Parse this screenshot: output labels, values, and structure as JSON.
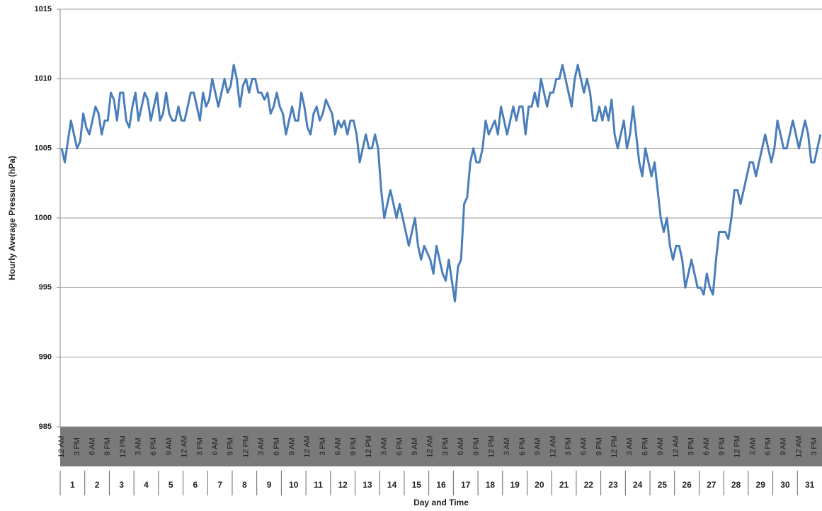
{
  "chart_data": {
    "type": "line",
    "y_label": "Hourly Average Pressure (hPa)",
    "x_label": "Day and Time",
    "color": "#4a7ebb",
    "grid": true,
    "ylim": [
      985,
      1015
    ],
    "yticks": [
      985,
      990,
      995,
      1000,
      1005,
      1010,
      1015
    ],
    "days": [
      "1",
      "2",
      "3",
      "4",
      "5",
      "6",
      "7",
      "8",
      "9",
      "10",
      "11",
      "12",
      "13",
      "14",
      "15",
      "16",
      "17",
      "18",
      "19",
      "20",
      "21",
      "22",
      "23",
      "24",
      "25",
      "26",
      "27",
      "28",
      "29",
      "30",
      "31"
    ],
    "categories": [
      "12 AM",
      null,
      null,
      null,
      null,
      "3 PM",
      null,
      null,
      null,
      null,
      "6 AM",
      null,
      null,
      null,
      null,
      "9 PM",
      null,
      null,
      null,
      null,
      "12 PM",
      null,
      null,
      null,
      null,
      "3 AM",
      null,
      null,
      null,
      null,
      "6 PM",
      null,
      null,
      null,
      null,
      "9 AM",
      null,
      null,
      null,
      null,
      "12 AM",
      null,
      null,
      null,
      null,
      "3 PM",
      null,
      null,
      null,
      null,
      "6 AM",
      null,
      null,
      null,
      null,
      "9 PM",
      null,
      null,
      null,
      null,
      "12 PM",
      null,
      null,
      null,
      null,
      "3 AM",
      null,
      null,
      null,
      null,
      "6 PM",
      null,
      null,
      null,
      null,
      "9 AM",
      null,
      null,
      null,
      null,
      "12 AM",
      null,
      null,
      null,
      null,
      "3 PM",
      null,
      null,
      null,
      null,
      "6 AM",
      null,
      null,
      null,
      null,
      "9 PM",
      null,
      null,
      null,
      null,
      "12 PM",
      null,
      null,
      null,
      null,
      "3 AM",
      null,
      null,
      null,
      null,
      "6 PM",
      null,
      null,
      null,
      null,
      "9 AM",
      null,
      null,
      null,
      null,
      "12 AM",
      null,
      null,
      null,
      null,
      "3 PM",
      null,
      null,
      null,
      null,
      "6 AM",
      null,
      null,
      null,
      null,
      "9 PM",
      null,
      null,
      null,
      null,
      "12 PM",
      null,
      null,
      null,
      null,
      "3 AM",
      null,
      null,
      null,
      null,
      "6 PM",
      null,
      null,
      null,
      null,
      "9 AM",
      null,
      null,
      null,
      null,
      "12 AM",
      null,
      null,
      null,
      null,
      "3 PM",
      null,
      null,
      null,
      null,
      "6 AM",
      null,
      null,
      null,
      null,
      "9 PM",
      null,
      null,
      null,
      null,
      "12 PM",
      null,
      null,
      null,
      null,
      "3 AM",
      null,
      null,
      null,
      null,
      "6 PM",
      null,
      null,
      null,
      null,
      "9 AM",
      null,
      null,
      null,
      null,
      "12 AM",
      null,
      null,
      null,
      null,
      "3 PM",
      null,
      null,
      null,
      null,
      "6 AM",
      null,
      null,
      null,
      null,
      "9 PM",
      null,
      null,
      null,
      null,
      "12 PM",
      null,
      null,
      null,
      null,
      "3 AM",
      null,
      null,
      null,
      null,
      "6 PM",
      null,
      null,
      null,
      null,
      "9 AM",
      null,
      null,
      null,
      null,
      "12 AM",
      null,
      null,
      null,
      null,
      "3 PM",
      null,
      null
    ],
    "values": [
      1005,
      1004,
      1005.5,
      1007,
      1006,
      1005,
      1005.5,
      1007.5,
      1006.5,
      1006,
      1007,
      1008,
      1007.5,
      1006,
      1007,
      1007,
      1009,
      1008.5,
      1007,
      1009,
      1009,
      1007,
      1006.5,
      1008,
      1009,
      1007,
      1008,
      1009,
      1008.5,
      1007,
      1008,
      1009,
      1007,
      1007.5,
      1009,
      1007.5,
      1007,
      1007,
      1008,
      1007,
      1007,
      1008,
      1009,
      1009,
      1008,
      1007,
      1009,
      1008,
      1008.5,
      1010,
      1009,
      1008,
      1009,
      1010,
      1009,
      1009.5,
      1011,
      1010,
      1008,
      1009.5,
      1010,
      1009,
      1010,
      1010,
      1009,
      1009,
      1008.5,
      1009,
      1007.5,
      1008,
      1009,
      1008,
      1007.5,
      1006,
      1007,
      1008,
      1007,
      1007,
      1009,
      1008,
      1006.5,
      1006,
      1007.5,
      1008,
      1007,
      1007.5,
      1008.5,
      1008,
      1007.5,
      1006,
      1007,
      1006.5,
      1007,
      1006,
      1007,
      1007,
      1006,
      1004,
      1005,
      1006,
      1005,
      1005,
      1006,
      1005,
      1002,
      1000,
      1001,
      1002,
      1001,
      1000,
      1001,
      1000,
      999,
      998,
      999,
      1000,
      998,
      997,
      998,
      997.5,
      997,
      996,
      998,
      997,
      996,
      995.5,
      997,
      995.5,
      994,
      996.5,
      997,
      1001,
      1001.5,
      1004,
      1005,
      1004,
      1004,
      1005,
      1007,
      1006,
      1006.5,
      1007,
      1006,
      1008,
      1007,
      1006,
      1007,
      1008,
      1007,
      1008,
      1008,
      1006,
      1008,
      1008,
      1009,
      1008,
      1010,
      1009,
      1008,
      1009,
      1009,
      1010,
      1010,
      1011,
      1010,
      1009,
      1008,
      1010,
      1011,
      1010,
      1009,
      1010,
      1009,
      1007,
      1007,
      1008,
      1007,
      1008,
      1007,
      1008.5,
      1006,
      1005,
      1006,
      1007,
      1005,
      1006,
      1008,
      1006,
      1004,
      1003,
      1005,
      1004,
      1003,
      1004,
      1002,
      1000,
      999,
      1000,
      998,
      997,
      998,
      998,
      997,
      995,
      996,
      997,
      996,
      995,
      995,
      994.5,
      996,
      995,
      994.5,
      997,
      999,
      999,
      999,
      998.5,
      1000,
      1002,
      1002,
      1001,
      1002,
      1003,
      1004,
      1004,
      1003,
      1004,
      1005,
      1006,
      1005,
      1004,
      1005,
      1007,
      1006,
      1005,
      1005,
      1006,
      1007,
      1006,
      1005,
      1006,
      1007,
      1006,
      1004,
      1004,
      1005,
      1006
    ]
  }
}
